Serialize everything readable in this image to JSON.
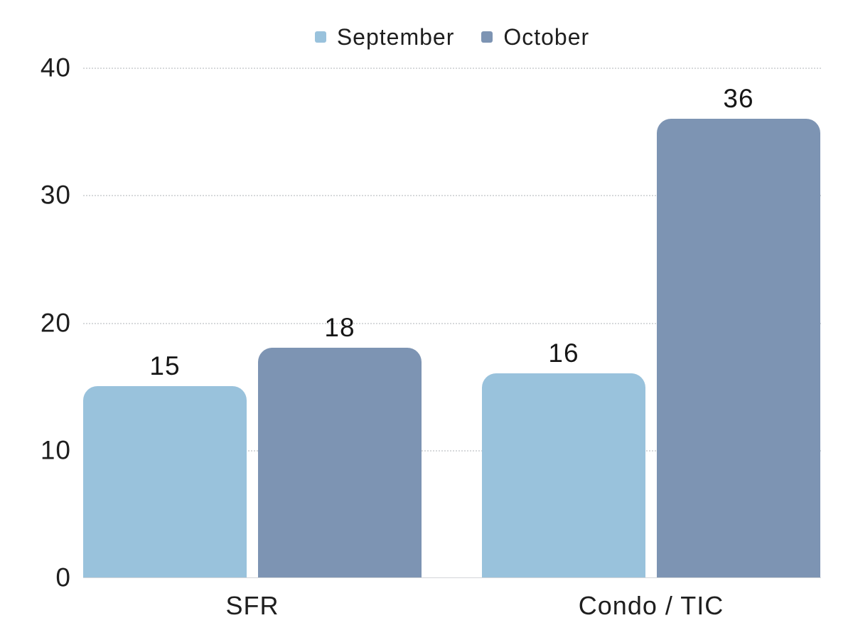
{
  "chart_data": {
    "type": "bar",
    "title": "",
    "xlabel": "",
    "ylabel": "",
    "categories": [
      "SFR",
      "Condo / TIC"
    ],
    "series": [
      {
        "name": "September",
        "color": "#99c2dc",
        "values": [
          15,
          16
        ]
      },
      {
        "name": "October",
        "color": "#7d94b3",
        "values": [
          18,
          36
        ]
      }
    ],
    "ylim": [
      0,
      40
    ],
    "yticks": [
      0,
      10,
      20,
      30,
      40
    ],
    "grid": true,
    "legend_position": "top-center",
    "bar_value_labels": [
      15,
      18,
      16,
      36
    ]
  },
  "colors": {
    "september_bar": "#99c2dc",
    "october_bar": "#7d94b3",
    "text": "#1e1e1e",
    "gridline": "#d7d9db",
    "background": "#ffffff"
  }
}
